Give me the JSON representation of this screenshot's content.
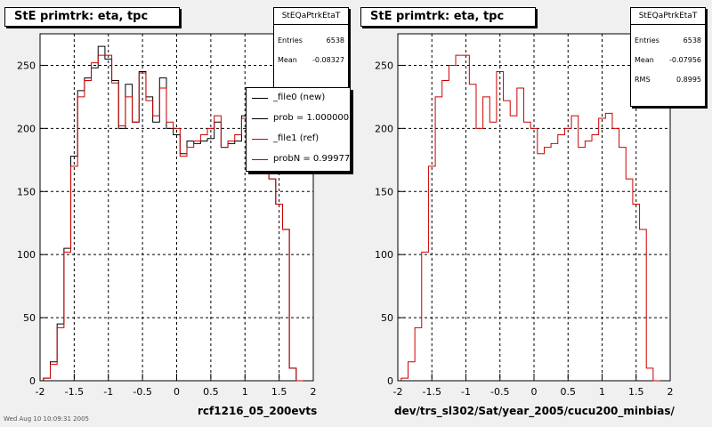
{
  "colors": {
    "ref": "#cc0000",
    "new": "#000000",
    "grid": "#000000",
    "background": "#f0f0f0"
  },
  "chart_data": [
    {
      "type": "line",
      "title": "StE primtrk: eta, tpc",
      "xlabel": "rcf1216_05_200evts",
      "ylabel": "",
      "xlim": [
        -2,
        2
      ],
      "ylim": [
        0,
        275
      ],
      "xticks": [
        -2,
        -1.5,
        -1,
        -0.5,
        0,
        0.5,
        1,
        1.5,
        2
      ],
      "yticks": [
        0,
        50,
        100,
        150,
        200,
        250
      ],
      "grid": true,
      "bins": [
        -1.9,
        -1.8,
        -1.7,
        -1.6,
        -1.5,
        -1.4,
        -1.3,
        -1.2,
        -1.1,
        -1.0,
        -0.9,
        -0.8,
        -0.7,
        -0.6,
        -0.5,
        -0.4,
        -0.3,
        -0.2,
        -0.1,
        0.0,
        0.1,
        0.2,
        0.3,
        0.4,
        0.5,
        0.6,
        0.7,
        0.8,
        0.9,
        1.0,
        1.1,
        1.2,
        1.3,
        1.4,
        1.5,
        1.6,
        1.7,
        1.8
      ],
      "series": [
        {
          "name": "_file0 (new)",
          "values": [
            2,
            15,
            45,
            105,
            178,
            230,
            240,
            248,
            265,
            255,
            238,
            200,
            235,
            205,
            245,
            225,
            205,
            240,
            200,
            195,
            180,
            190,
            188,
            190,
            192,
            205,
            185,
            188,
            190,
            210,
            215,
            205,
            190,
            160,
            140,
            120,
            10,
            0
          ]
        },
        {
          "name": "_file1 (ref)",
          "values": [
            2,
            13,
            42,
            102,
            170,
            225,
            238,
            252,
            258,
            258,
            236,
            202,
            225,
            205,
            244,
            222,
            210,
            232,
            205,
            200,
            178,
            185,
            190,
            195,
            200,
            210,
            185,
            190,
            195,
            208,
            212,
            200,
            185,
            160,
            140,
            120,
            10,
            0
          ]
        }
      ],
      "stats": {
        "name": "StEQaPtrkEtaT",
        "entries_label": "Entries",
        "entries": "6538",
        "mean_label": "Mean",
        "mean": "-0.08327"
      },
      "legend": [
        {
          "label": "_file0 (new)",
          "color": "#000000"
        },
        {
          "label": "prob = 1.000000",
          "color": "#000000"
        },
        {
          "label": "_file1 (ref)",
          "color": "#cc0000"
        },
        {
          "label": "probN = 0.99977",
          "color": "#cc0000"
        }
      ]
    },
    {
      "type": "line",
      "title": "StE primtrk: eta, tpc",
      "xlabel": "dev/trs_sl302/Sat/year_2005/cucu200_minbias/",
      "ylabel": "",
      "xlim": [
        -2,
        2
      ],
      "ylim": [
        0,
        275
      ],
      "xticks": [
        -2,
        -1.5,
        -1,
        -0.5,
        0,
        0.5,
        1,
        1.5,
        2
      ],
      "yticks": [
        0,
        50,
        100,
        150,
        200,
        250
      ],
      "grid": true,
      "bins": [
        -1.9,
        -1.8,
        -1.7,
        -1.6,
        -1.5,
        -1.4,
        -1.3,
        -1.2,
        -1.1,
        -1.0,
        -0.9,
        -0.8,
        -0.7,
        -0.6,
        -0.5,
        -0.4,
        -0.3,
        -0.2,
        -0.1,
        0.0,
        0.1,
        0.2,
        0.3,
        0.4,
        0.5,
        0.6,
        0.7,
        0.8,
        0.9,
        1.0,
        1.1,
        1.2,
        1.3,
        1.4,
        1.5,
        1.6,
        1.7,
        1.8
      ],
      "series": [
        {
          "name": "",
          "values": [
            2,
            15,
            42,
            102,
            170,
            225,
            238,
            250,
            258,
            258,
            235,
            200,
            225,
            205,
            245,
            222,
            210,
            232,
            205,
            200,
            180,
            185,
            188,
            195,
            200,
            210,
            185,
            190,
            195,
            208,
            212,
            200,
            185,
            160,
            140,
            120,
            10,
            0
          ]
        }
      ],
      "stats": {
        "name": "StEQaPtrkEtaT",
        "entries_label": "Entries",
        "entries": "6538",
        "mean_label": "Mean",
        "mean": "-0.07956",
        "rms_label": "RMS",
        "rms": "0.8995"
      }
    }
  ],
  "footer": "Wed Aug 10 10:09:31 2005"
}
